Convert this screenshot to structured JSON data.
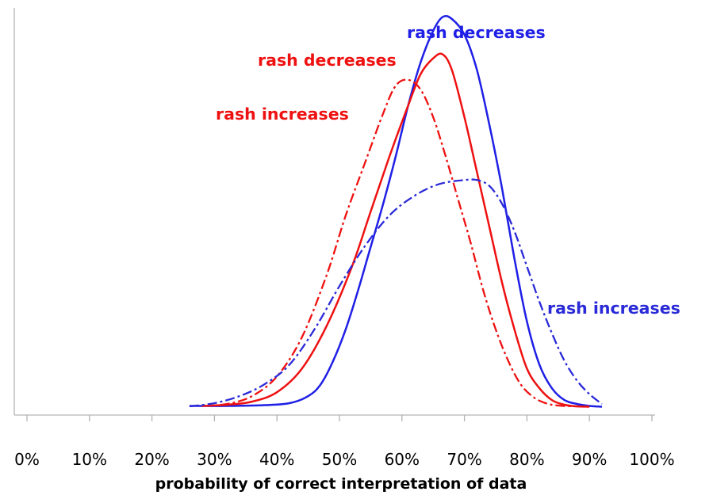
{
  "chart_data": {
    "type": "line",
    "title": "",
    "xlabel": "probability of correct interpretation of data",
    "ylabel": "",
    "xlim": [
      0,
      100
    ],
    "ylim": [
      0,
      1
    ],
    "x_tick_labels": [
      "0%",
      "10%",
      "20%",
      "30%",
      "40%",
      "50%",
      "60%",
      "70%",
      "80%",
      "90%",
      "100%"
    ],
    "grid": false,
    "legend": "none",
    "series": [
      {
        "name": "rash decreases",
        "color": "#1f1fe6",
        "style": "solid",
        "points": [
          [
            26,
            0.005
          ],
          [
            32,
            0.005
          ],
          [
            38,
            0.007
          ],
          [
            42,
            0.012
          ],
          [
            45,
            0.03
          ],
          [
            47,
            0.06
          ],
          [
            49,
            0.12
          ],
          [
            51,
            0.2
          ],
          [
            53,
            0.3
          ],
          [
            55,
            0.41
          ],
          [
            57,
            0.52
          ],
          [
            59,
            0.64
          ],
          [
            61,
            0.77
          ],
          [
            63,
            0.88
          ],
          [
            65,
            0.96
          ],
          [
            66.5,
            0.995
          ],
          [
            68,
            0.99
          ],
          [
            70,
            0.95
          ],
          [
            72,
            0.86
          ],
          [
            74,
            0.72
          ],
          [
            76,
            0.56
          ],
          [
            78,
            0.38
          ],
          [
            80,
            0.22
          ],
          [
            82,
            0.11
          ],
          [
            84,
            0.05
          ],
          [
            86,
            0.02
          ],
          [
            88,
            0.01
          ],
          [
            90,
            0.005
          ],
          [
            92,
            0.003
          ]
        ]
      },
      {
        "name": "rash decreases",
        "color": "#ee1111",
        "style": "solid",
        "points": [
          [
            28,
            0.005
          ],
          [
            32,
            0.008
          ],
          [
            36,
            0.016
          ],
          [
            40,
            0.04
          ],
          [
            44,
            0.1
          ],
          [
            48,
            0.21
          ],
          [
            52,
            0.36
          ],
          [
            55,
            0.5
          ],
          [
            58,
            0.64
          ],
          [
            61,
            0.77
          ],
          [
            63,
            0.85
          ],
          [
            65,
            0.89
          ],
          [
            66.5,
            0.9
          ],
          [
            68,
            0.86
          ],
          [
            70,
            0.74
          ],
          [
            72,
            0.6
          ],
          [
            74,
            0.46
          ],
          [
            76,
            0.32
          ],
          [
            78,
            0.2
          ],
          [
            80,
            0.1
          ],
          [
            82,
            0.05
          ],
          [
            84,
            0.02
          ],
          [
            86,
            0.008
          ],
          [
            88,
            0.004
          ],
          [
            90,
            0.003
          ]
        ]
      },
      {
        "name": "rash increases",
        "color": "#ee1111",
        "style": "dashdot",
        "points": [
          [
            28,
            0.005
          ],
          [
            32,
            0.01
          ],
          [
            36,
            0.03
          ],
          [
            40,
            0.08
          ],
          [
            44,
            0.18
          ],
          [
            48,
            0.34
          ],
          [
            51,
            0.49
          ],
          [
            54,
            0.62
          ],
          [
            57,
            0.75
          ],
          [
            59,
            0.82
          ],
          [
            61,
            0.835
          ],
          [
            63,
            0.81
          ],
          [
            65,
            0.74
          ],
          [
            67,
            0.64
          ],
          [
            69,
            0.53
          ],
          [
            71,
            0.42
          ],
          [
            73,
            0.3
          ],
          [
            75,
            0.2
          ],
          [
            77,
            0.12
          ],
          [
            79,
            0.06
          ],
          [
            81,
            0.028
          ],
          [
            83,
            0.012
          ],
          [
            85,
            0.006
          ],
          [
            88,
            0.004
          ],
          [
            90,
            0.003
          ]
        ]
      },
      {
        "name": "rash increases",
        "color": "#2a2ad8",
        "style": "dashdot",
        "points": [
          [
            26,
            0.004
          ],
          [
            30,
            0.012
          ],
          [
            34,
            0.03
          ],
          [
            38,
            0.06
          ],
          [
            42,
            0.11
          ],
          [
            46,
            0.2
          ],
          [
            50,
            0.31
          ],
          [
            54,
            0.41
          ],
          [
            58,
            0.49
          ],
          [
            62,
            0.54
          ],
          [
            66,
            0.57
          ],
          [
            70,
            0.58
          ],
          [
            72,
            0.58
          ],
          [
            74,
            0.565
          ],
          [
            76,
            0.52
          ],
          [
            78,
            0.45
          ],
          [
            80,
            0.36
          ],
          [
            82,
            0.27
          ],
          [
            84,
            0.19
          ],
          [
            86,
            0.12
          ],
          [
            88,
            0.07
          ],
          [
            90,
            0.035
          ],
          [
            92,
            0.01
          ]
        ]
      }
    ]
  },
  "annotations": [
    {
      "text": "rash decreases",
      "color": "#1f1fe6"
    },
    {
      "text": "rash decreases",
      "color": "#ee1111"
    },
    {
      "text": "rash increases",
      "color": "#ee1111"
    },
    {
      "text": "rash increases",
      "color": "#2a2ad8"
    }
  ]
}
